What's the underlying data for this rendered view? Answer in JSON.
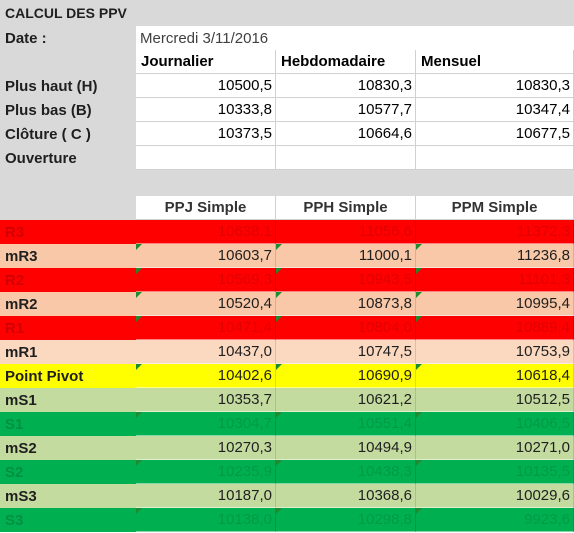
{
  "colors": {
    "grey_band": "#d9d9d9",
    "red": "#ff0000",
    "salmon": "#f8c8a8",
    "salmon_pale": "#fbd8c0",
    "yellow": "#ffff00",
    "green": "#00b050",
    "green_pale": "#c4dba0",
    "white": "#ffffff"
  },
  "title": "CALCUL DES PPV",
  "date": {
    "label": "Date :",
    "value": "Mercredi  3/11/2016"
  },
  "input_table": {
    "headers": [
      "Journalier",
      "Hebdomadaire",
      "Mensuel"
    ],
    "rows": [
      {
        "label": "Plus haut (H)",
        "values": [
          "10500,5",
          "10830,3",
          "10830,3"
        ]
      },
      {
        "label": "Plus bas (B)",
        "values": [
          "10333,8",
          "10577,7",
          "10347,4"
        ]
      },
      {
        "label": "Clôture ( C )",
        "values": [
          "10373,5",
          "10664,6",
          "10677,5"
        ]
      },
      {
        "label": "Ouverture",
        "values": [
          "",
          "",
          ""
        ]
      }
    ]
  },
  "pivot_table": {
    "headers": [
      "PPJ Simple",
      "PPH Simple",
      "PPM Simple"
    ],
    "rows": [
      {
        "label": "R3",
        "values": [
          "10638,1",
          "11056,6",
          "11372,3"
        ],
        "fill": "#ff0000"
      },
      {
        "label": "mR3",
        "values": [
          "10603,7",
          "11000,1",
          "11236,8"
        ],
        "fill": "#f8c8a8"
      },
      {
        "label": "R2",
        "values": [
          "10569,3",
          "10943,5",
          "11101,3"
        ],
        "fill": "#ff0000"
      },
      {
        "label": "mR2",
        "values": [
          "10520,4",
          "10873,8",
          "10995,4"
        ],
        "fill": "#f8c8a8"
      },
      {
        "label": "R1",
        "values": [
          "10471,4",
          "10804,0",
          "10889,4"
        ],
        "fill": "#ff0000"
      },
      {
        "label": "mR1",
        "values": [
          "10437,0",
          "10747,5",
          "10753,9"
        ],
        "fill": "#fbd8c0"
      },
      {
        "label": "Point Pivot",
        "values": [
          "10402,6",
          "10690,9",
          "10618,4"
        ],
        "fill": "#ffff00"
      },
      {
        "label": "mS1",
        "values": [
          "10353,7",
          "10621,2",
          "10512,5"
        ],
        "fill": "#c4dba0"
      },
      {
        "label": "S1",
        "values": [
          "10304,7",
          "10551,4",
          "10406,5"
        ],
        "fill": "#00b050"
      },
      {
        "label": "mS2",
        "values": [
          "10270,3",
          "10494,9",
          "10271,0"
        ],
        "fill": "#c4dba0"
      },
      {
        "label": "S2",
        "values": [
          "10235,9",
          "10438,3",
          "10135,5"
        ],
        "fill": "#00b050"
      },
      {
        "label": "mS3",
        "values": [
          "10187,0",
          "10368,6",
          "10029,6"
        ],
        "fill": "#c4dba0"
      },
      {
        "label": "S3",
        "values": [
          "10138,0",
          "10298,8",
          "9923,6"
        ],
        "fill": "#00b050"
      }
    ]
  }
}
